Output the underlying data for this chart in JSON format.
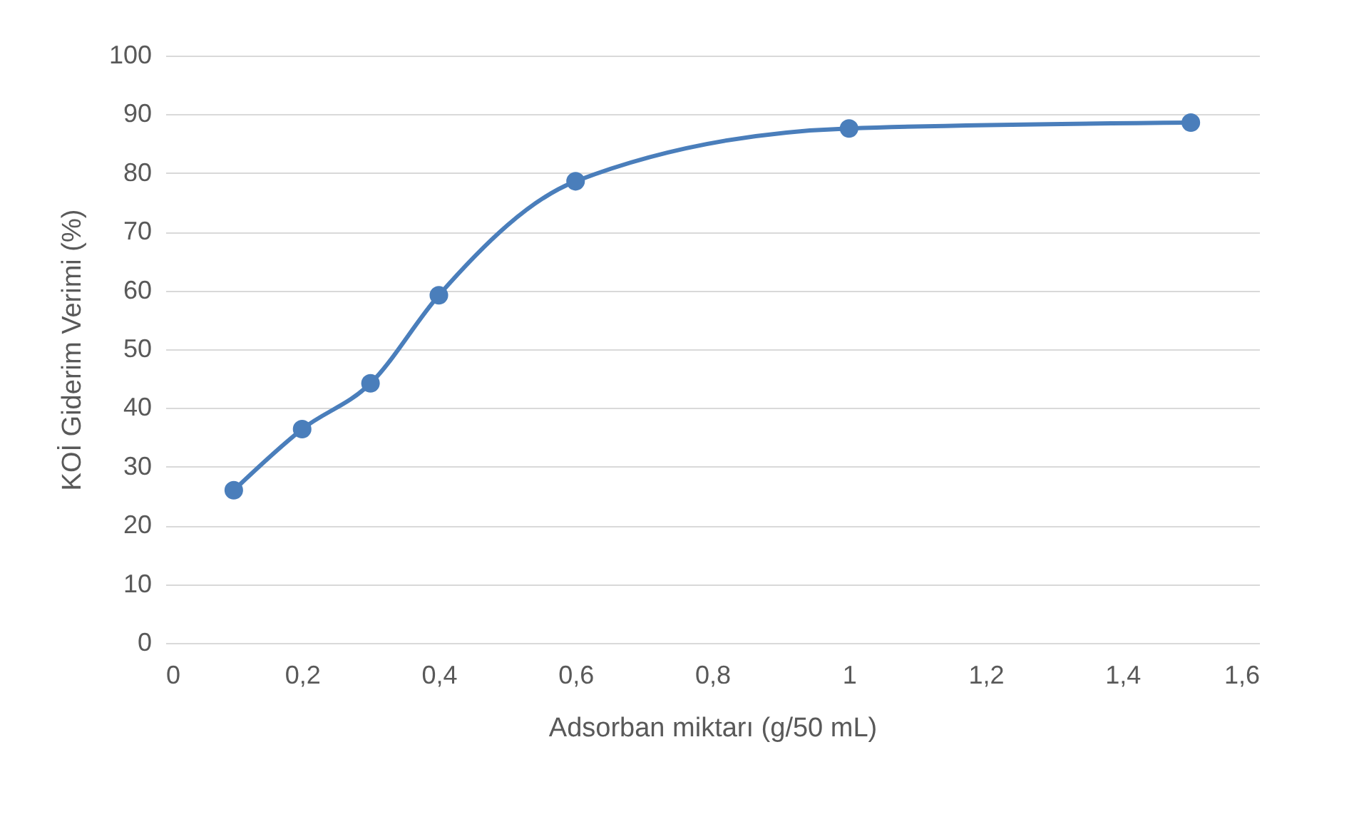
{
  "chart_data": {
    "type": "line",
    "xlabel": "Adsorban miktarı (g/50 mL)",
    "ylabel": "KOİ Giderim Verimi (%)",
    "x": [
      0.1,
      0.2,
      0.3,
      0.4,
      0.6,
      1.0,
      1.5
    ],
    "series": [
      {
        "color": "#4a7ebb",
        "values": [
          26.0,
          36.4,
          44.2,
          59.2,
          78.6,
          87.6,
          88.6
        ]
      }
    ],
    "xlim": [
      0,
      1.6
    ],
    "xticks": [
      0,
      {
        "value": 0.2,
        "label": "0,2"
      },
      {
        "value": 0.4,
        "label": "0,4"
      },
      {
        "value": 0.6,
        "label": "0,6"
      },
      {
        "value": 0.8,
        "label": "0,8"
      },
      1,
      {
        "value": 1.2,
        "label": "1,2"
      },
      {
        "value": 1.4,
        "label": "1,4"
      },
      {
        "value": 1.6,
        "label": "1,6"
      }
    ],
    "ylim": [
      0,
      100
    ],
    "yticks": [
      0,
      10,
      20,
      30,
      40,
      50,
      60,
      70,
      80,
      90,
      100
    ],
    "grid": "y",
    "marker": "circle",
    "line_style": "solid"
  }
}
